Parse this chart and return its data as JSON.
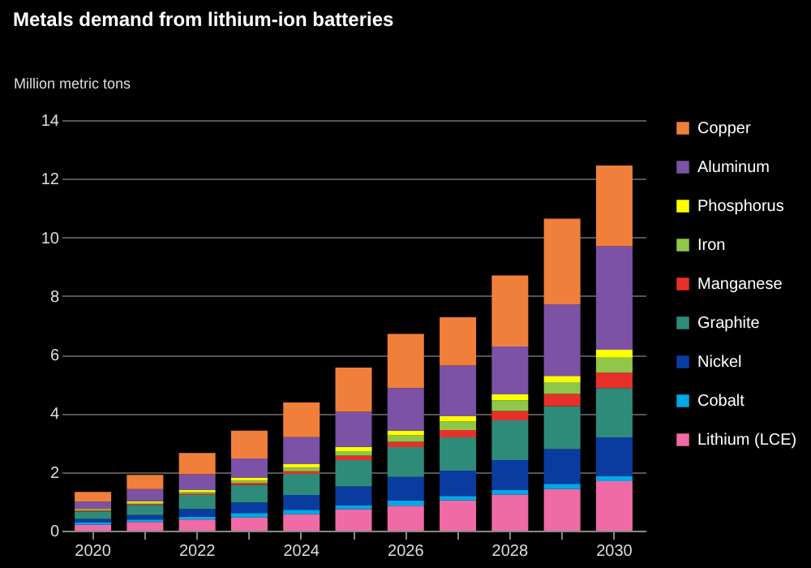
{
  "chart_data": {
    "type": "bar",
    "title": "Metals demand from lithium-ion batteries",
    "ylabel": "Million metric tons",
    "categories": [
      "2020",
      null,
      "2022",
      null,
      "2024",
      null,
      "2026",
      null,
      "2028",
      null,
      "2030"
    ],
    "stacked": true,
    "ylim": [
      0,
      14
    ],
    "yticks": [
      0,
      2,
      4,
      6,
      8,
      10,
      12,
      14
    ],
    "grid": "y",
    "legend": "right",
    "series": [
      {
        "name": "Lithium (LCE)",
        "color": "#f06aa6",
        "values": [
          0.2,
          0.3,
          0.38,
          0.45,
          0.56,
          0.73,
          0.85,
          1.03,
          1.23,
          1.42,
          1.69
        ]
      },
      {
        "name": "Cobalt",
        "color": "#00a8e6",
        "values": [
          0.08,
          0.08,
          0.1,
          0.15,
          0.15,
          0.14,
          0.18,
          0.15,
          0.15,
          0.18,
          0.18
        ]
      },
      {
        "name": "Nickel",
        "color": "#0a3ca0",
        "values": [
          0.12,
          0.15,
          0.26,
          0.36,
          0.51,
          0.64,
          0.8,
          0.87,
          1.03,
          1.18,
          1.31
        ]
      },
      {
        "name": "Graphite",
        "color": "#2e8b7a",
        "values": [
          0.25,
          0.35,
          0.48,
          0.6,
          0.72,
          0.9,
          1.02,
          1.13,
          1.35,
          1.47,
          1.68
        ]
      },
      {
        "name": "Manganese",
        "color": "#e8302a",
        "values": [
          0.03,
          0.03,
          0.04,
          0.07,
          0.09,
          0.15,
          0.18,
          0.25,
          0.32,
          0.41,
          0.53
        ]
      },
      {
        "name": "Iron",
        "color": "#8fc74a",
        "values": [
          0.03,
          0.04,
          0.06,
          0.08,
          0.12,
          0.15,
          0.22,
          0.29,
          0.37,
          0.4,
          0.51
        ]
      },
      {
        "name": "Phosphorus",
        "color": "#ffff00",
        "values": [
          0.03,
          0.05,
          0.06,
          0.1,
          0.12,
          0.15,
          0.16,
          0.18,
          0.2,
          0.22,
          0.27
        ]
      },
      {
        "name": "Aluminum",
        "color": "#7b52a6",
        "values": [
          0.25,
          0.42,
          0.54,
          0.65,
          0.92,
          1.19,
          1.45,
          1.73,
          1.63,
          2.43,
          3.53
        ]
      },
      {
        "name": "Copper",
        "color": "#f07f3c",
        "values": [
          0.33,
          0.48,
          0.73,
          0.95,
          1.18,
          1.51,
          1.85,
          1.65,
          2.42,
          2.93,
          2.75
        ]
      }
    ]
  }
}
